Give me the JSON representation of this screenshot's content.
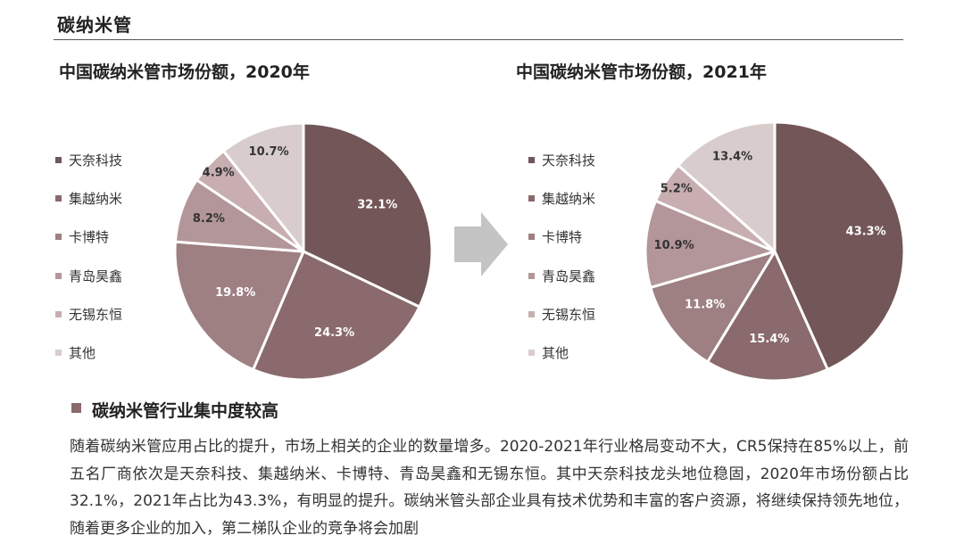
{
  "page": {
    "title": "碳纳米管",
    "section_heading": "碳纳米管行业集中度较高",
    "paragraph": "随着碳纳米管应用占比的提升，市场上相关的企业的数量增多。2020-2021年行业格局变动不大，CR5保持在85%以上，前五名厂商依次是天奈科技、集越纳米、卡博特、青岛昊鑫和无锡东恒。其中天奈科技龙头地位稳固，2020年市场份额占比32.1%，2021年占比为43.3%，有明显的提升。碳纳米管头部企业具有技术优势和丰富的客户资源，将继续保持领先地位，随着更多企业的加入，第二梯队企业的竞争将会加剧"
  },
  "colors": {
    "slices": [
      "#735658",
      "#8a6a6c",
      "#9e7f82",
      "#b39699",
      "#c8aeb0",
      "#d8cccc"
    ],
    "arrow": "#c4c4c4",
    "bullet": "#8a6a6c"
  },
  "chart_data": [
    {
      "type": "pie",
      "title": "中国碳纳米管市场份额，2020年",
      "labels": [
        "天奈科技",
        "集越纳米",
        "卡博特",
        "青岛昊鑫",
        "无锡东恒",
        "其他"
      ],
      "values": [
        32.1,
        24.3,
        19.8,
        8.2,
        4.9,
        10.7
      ],
      "value_labels": [
        "32.1%",
        "24.3%",
        "19.8%",
        "8.2%",
        "4.9%",
        "10.7%"
      ],
      "legend_position": "left"
    },
    {
      "type": "pie",
      "title": "中国碳纳米管市场份额，2021年",
      "labels": [
        "天奈科技",
        "集越纳米",
        "卡博特",
        "青岛昊鑫",
        "无锡东恒",
        "其他"
      ],
      "values": [
        43.3,
        15.4,
        11.8,
        10.9,
        5.2,
        13.4
      ],
      "value_labels": [
        "43.3%",
        "15.4%",
        "11.8%",
        "10.9%",
        "5.2%",
        "13.4%"
      ],
      "legend_position": "left"
    }
  ]
}
